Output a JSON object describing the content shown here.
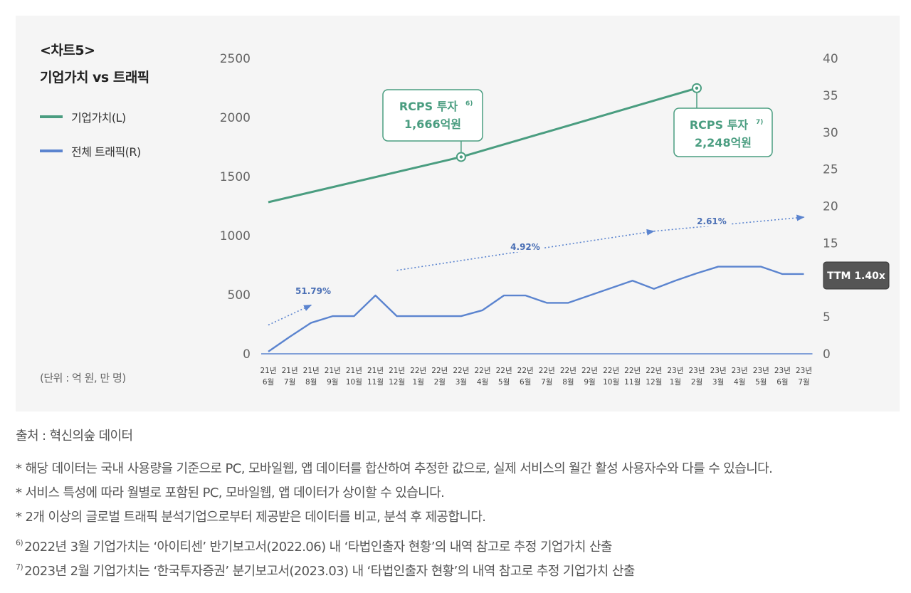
{
  "chart_data": {
    "type": "line",
    "title": "<차트5>",
    "subtitle": "기업가치 vs 트래픽",
    "unit_note": "(단위 : 억 원, 만 명)",
    "categories": [
      [
        "21년",
        "6월"
      ],
      [
        "21년",
        "7월"
      ],
      [
        "21년",
        "8월"
      ],
      [
        "21년",
        "9월"
      ],
      [
        "21년",
        "10월"
      ],
      [
        "21년",
        "11월"
      ],
      [
        "21년",
        "12월"
      ],
      [
        "22년",
        "1월"
      ],
      [
        "22년",
        "2월"
      ],
      [
        "22년",
        "3월"
      ],
      [
        "22년",
        "4월"
      ],
      [
        "22년",
        "5월"
      ],
      [
        "22년",
        "6월"
      ],
      [
        "22년",
        "7월"
      ],
      [
        "22년",
        "8월"
      ],
      [
        "22년",
        "9월"
      ],
      [
        "22년",
        "10월"
      ],
      [
        "22년",
        "11월"
      ],
      [
        "22년",
        "12월"
      ],
      [
        "23년",
        "1월"
      ],
      [
        "23년",
        "2월"
      ],
      [
        "23년",
        "3월"
      ],
      [
        "23년",
        "4월"
      ],
      [
        "23년",
        "5월"
      ],
      [
        "23년",
        "6월"
      ],
      [
        "23년",
        "7월"
      ]
    ],
    "left_axis": {
      "min": 0,
      "max": 2500,
      "ticks": [
        "0",
        "500",
        "1000",
        "1500",
        "2000",
        "2500"
      ]
    },
    "right_axis": {
      "min": 0,
      "max": 40,
      "ticks": [
        "0",
        "5",
        "10",
        "15",
        "20",
        "25",
        "30",
        "35",
        "40"
      ]
    },
    "series": [
      {
        "name": "기업가치(L)",
        "axis": "left",
        "color": "#4a9d80",
        "points": [
          {
            "index": 0,
            "value": 1283
          },
          {
            "index": 9,
            "value": 1666
          },
          {
            "index": 20,
            "value": 2248
          }
        ]
      },
      {
        "name": "전체 트래픽(R)",
        "axis": "right",
        "color": "#5b84cf",
        "values": [
          0.3,
          2.3,
          4.2,
          5.1,
          5.1,
          7.9,
          5.1,
          5.1,
          5.1,
          5.1,
          5.9,
          7.9,
          7.9,
          6.9,
          6.9,
          7.9,
          8.9,
          9.9,
          8.8,
          9.9,
          10.9,
          11.8,
          11.8,
          11.8,
          10.8,
          10.8
        ]
      }
    ],
    "trend_arrows": [
      {
        "label": "51.79%",
        "from": {
          "index": 0,
          "value": 3.9
        },
        "to": {
          "index": 2,
          "value": 6.6
        }
      },
      {
        "label": "4.92%",
        "from": {
          "index": 6,
          "value": 11.3
        },
        "to": {
          "index": 18,
          "value": 16.6
        }
      },
      {
        "label": "2.61%",
        "from": {
          "index": 18,
          "value": 16.6
        },
        "to": {
          "index": 25,
          "value": 18.5
        }
      }
    ],
    "annotations": [
      {
        "line1": "RCPS 투자",
        "sup": "6)",
        "line2": "1,666억원",
        "index": 9
      },
      {
        "line1": "RCPS 투자",
        "sup": "7)",
        "line2": "2,248억원",
        "index": 20
      }
    ],
    "ttm_badge": "TTM 1.40x"
  },
  "notes": {
    "source": "출처 : 혁신의숲 데이터",
    "bullets": [
      "* 해당 데이터는 국내 사용량을 기준으로 PC, 모바일웹, 앱 데이터를 합산하여 추정한 값으로, 실제 서비스의 월간 활성 사용자수와 다를 수 있습니다.",
      "* 서비스 특성에 따라 월별로 포함된 PC, 모바일웹, 앱 데이터가 상이할 수 있습니다.",
      "* 2개 이상의 글로벌 트래픽 분석기업으로부터 제공받은 데이터를 비교, 분석 후 제공합니다."
    ],
    "footnotes": [
      {
        "mark": "6)",
        "text": "2022년 3월 기업가치는 ‘아이티센’ 반기보고서(2022.06) 내 ‘타법인출자 현황’의 내역 참고로 추정 기업가치 산출"
      },
      {
        "mark": "7)",
        "text": "2023년 2월 기업가치는 ‘한국투자증권’ 분기보고서(2023.03) 내 ‘타법인출자 현황’의 내역 참고로 추정 기업가치 산출"
      }
    ]
  }
}
